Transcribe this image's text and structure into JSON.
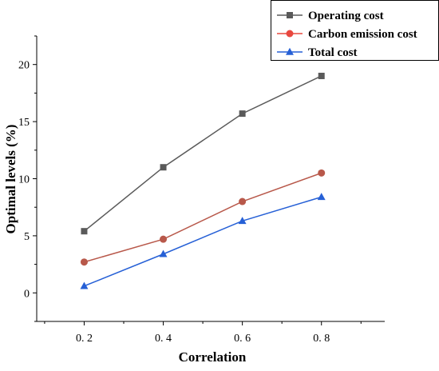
{
  "chart_data": {
    "type": "line",
    "title": "",
    "xlabel": "Correlation",
    "ylabel": "Optimal levels (%)",
    "x": [
      0.2,
      0.4,
      0.6,
      0.8
    ],
    "x_tick_labels": [
      "0. 2",
      "0. 4",
      "0. 6",
      "0. 8"
    ],
    "xlim": [
      0.08,
      0.96
    ],
    "ylim": [
      -2.5,
      22.5
    ],
    "y_ticks": [
      0,
      5,
      10,
      15,
      20
    ],
    "y_tick_labels": [
      "0",
      "5",
      "10",
      "15",
      "20"
    ],
    "grid": false,
    "legend_position": "top-right",
    "series": [
      {
        "name": "Operating cost",
        "values": [
          5.4,
          11.0,
          15.7,
          19.0
        ],
        "color": "#5a5a5a",
        "marker": "square"
      },
      {
        "name": "Carbon emission cost",
        "values": [
          2.7,
          4.7,
          8.0,
          10.5
        ],
        "color": "#e8483f",
        "line_color": "#b8584a",
        "marker": "circle"
      },
      {
        "name": "Total cost",
        "values": [
          0.6,
          3.4,
          6.3,
          8.4
        ],
        "color": "#2660d6",
        "marker": "triangle"
      }
    ]
  }
}
